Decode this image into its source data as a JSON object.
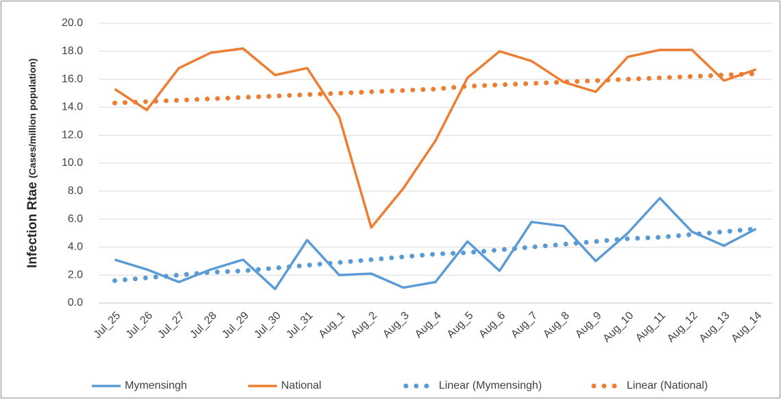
{
  "chart_data": {
    "type": "line",
    "ylabel": "Infection Rtae",
    "ylabel_note": "(Cases/million population)",
    "categories": [
      "Jul_25",
      "Jul_26",
      "Jul_27",
      "Jul_28",
      "Jul_29",
      "Jul_30",
      "Jul_31",
      "Aug_1",
      "Aug_2",
      "Aug_3",
      "Aug_4",
      "Aug_5",
      "Aug_6",
      "Aug_7",
      "Aug_8",
      "Aug_9",
      "Aug_10",
      "Aug_11",
      "Aug_12",
      "Aug_13",
      "Aug_14"
    ],
    "series": [
      {
        "name": "Mymensingh",
        "color": "#5b9bd5",
        "style": "solid",
        "values": [
          3.1,
          2.4,
          1.5,
          2.4,
          3.1,
          1.0,
          4.5,
          2.0,
          2.1,
          1.1,
          1.5,
          4.4,
          2.3,
          5.8,
          5.5,
          3.0,
          5.0,
          7.5,
          5.1,
          4.1,
          5.3
        ]
      },
      {
        "name": "National",
        "color": "#ed7d31",
        "style": "solid",
        "values": [
          15.3,
          13.8,
          16.8,
          17.9,
          18.2,
          16.3,
          16.8,
          13.3,
          5.4,
          8.2,
          11.6,
          16.1,
          18.0,
          17.3,
          15.8,
          15.1,
          17.6,
          18.1,
          18.1,
          15.9,
          16.7
        ]
      },
      {
        "name": "Linear (Mymensingh)",
        "color": "#5b9bd5",
        "style": "dotted",
        "values": [
          1.6,
          1.8,
          2.0,
          2.2,
          2.3,
          2.5,
          2.7,
          2.9,
          3.1,
          3.3,
          3.5,
          3.6,
          3.8,
          4.0,
          4.2,
          4.4,
          4.6,
          4.7,
          4.9,
          5.1,
          5.3
        ]
      },
      {
        "name": "Linear (National)",
        "color": "#ed7d31",
        "style": "dotted",
        "values": [
          14.3,
          14.4,
          14.5,
          14.6,
          14.7,
          14.8,
          14.9,
          15.0,
          15.1,
          15.2,
          15.3,
          15.5,
          15.6,
          15.7,
          15.8,
          15.9,
          16.0,
          16.1,
          16.2,
          16.3,
          16.4
        ]
      }
    ],
    "ylim": [
      0,
      20
    ],
    "yticks": [
      {
        "value": 0,
        "label": "0.0"
      },
      {
        "value": 2,
        "label": "2.0"
      },
      {
        "value": 4,
        "label": "4.0"
      },
      {
        "value": 6,
        "label": "6.0"
      },
      {
        "value": 8,
        "label": "8.0"
      },
      {
        "value": 10,
        "label": "10.0"
      },
      {
        "value": 12,
        "label": "12.0"
      },
      {
        "value": 14,
        "label": "14.0"
      },
      {
        "value": 16,
        "label": "16.0"
      },
      {
        "value": 18,
        "label": "18.0"
      },
      {
        "value": 20,
        "label": "20.0"
      }
    ],
    "grid": true,
    "legend": "bottom"
  }
}
